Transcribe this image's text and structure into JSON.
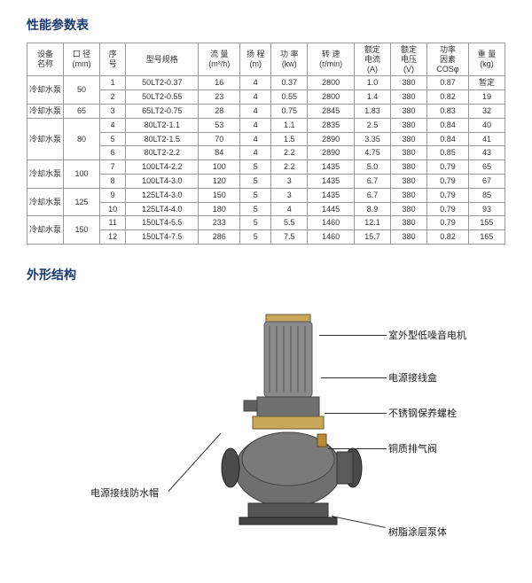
{
  "title1": "性能参数表",
  "title2": "外形结构",
  "headers": {
    "name": "设备\n名称",
    "dia": "口 径\n(mm)",
    "seq": "序\n号",
    "model": "型号规格",
    "flow": "流 量\n(m³/h)",
    "head": "扬 程\n(m)",
    "power": "功 率\n(kw)",
    "rpm": "转 速\n(r/min)",
    "current": "额定\n电流\n(A)",
    "voltage": "额定\n电压\n(V)",
    "pf": "功率\n因素\nCOSφ",
    "weight": "重 量\n(kg)"
  },
  "groups": [
    {
      "name": "冷却水泵",
      "dia": "50",
      "rows": [
        {
          "seq": "1",
          "model": "50LT2-0.37",
          "flow": "16",
          "head": "4",
          "power": "0.37",
          "rpm": "2800",
          "current": "1.0",
          "voltage": "380",
          "pf": "0.87",
          "weight": "暂定"
        },
        {
          "seq": "2",
          "model": "50LT2-0.55",
          "flow": "23",
          "head": "4",
          "power": "0.55",
          "rpm": "2800",
          "current": "1.4",
          "voltage": "380",
          "pf": "0.82",
          "weight": "19"
        }
      ]
    },
    {
      "name": "冷却水泵",
      "dia": "65",
      "rows": [
        {
          "seq": "3",
          "model": "65LT2-0.75",
          "flow": "28",
          "head": "4",
          "power": "0.75",
          "rpm": "2845",
          "current": "1.83",
          "voltage": "380",
          "pf": "0.83",
          "weight": "32"
        }
      ]
    },
    {
      "name": "冷却水泵",
      "dia": "80",
      "rows": [
        {
          "seq": "4",
          "model": "80LT2-1.1",
          "flow": "53",
          "head": "4",
          "power": "1.1",
          "rpm": "2835",
          "current": "2.5",
          "voltage": "380",
          "pf": "0.84",
          "weight": "40"
        },
        {
          "seq": "5",
          "model": "80LT2-1.5",
          "flow": "70",
          "head": "4",
          "power": "1.5",
          "rpm": "2890",
          "current": "3.35",
          "voltage": "380",
          "pf": "0.84",
          "weight": "41"
        },
        {
          "seq": "6",
          "model": "80LT2-2.2",
          "flow": "84",
          "head": "4",
          "power": "2.2",
          "rpm": "2890",
          "current": "4.75",
          "voltage": "380",
          "pf": "0.85",
          "weight": "43"
        }
      ]
    },
    {
      "name": "冷却水泵",
      "dia": "100",
      "rows": [
        {
          "seq": "7",
          "model": "100LT4-2.2",
          "flow": "100",
          "head": "5",
          "power": "2.2",
          "rpm": "1435",
          "current": "5.0",
          "voltage": "380",
          "pf": "0.79",
          "weight": "65"
        },
        {
          "seq": "8",
          "model": "100LT4-3.0",
          "flow": "120",
          "head": "5",
          "power": "3",
          "rpm": "1435",
          "current": "6.7",
          "voltage": "380",
          "pf": "0.79",
          "weight": "67"
        }
      ]
    },
    {
      "name": "冷却水泵",
      "dia": "125",
      "rows": [
        {
          "seq": "9",
          "model": "125LT4-3.0",
          "flow": "150",
          "head": "5",
          "power": "3",
          "rpm": "1435",
          "current": "6.7",
          "voltage": "380",
          "pf": "0.79",
          "weight": "85"
        },
        {
          "seq": "10",
          "model": "125LT4-4.0",
          "flow": "180",
          "head": "5",
          "power": "4",
          "rpm": "1445",
          "current": "8.9",
          "voltage": "380",
          "pf": "0.79",
          "weight": "93"
        }
      ]
    },
    {
      "name": "冷却水泵",
      "dia": "150",
      "rows": [
        {
          "seq": "11",
          "model": "150LT4-5.5",
          "flow": "233",
          "head": "5",
          "power": "5.5",
          "rpm": "1460",
          "current": "12.1",
          "voltage": "380",
          "pf": "0.79",
          "weight": "155"
        },
        {
          "seq": "12",
          "model": "150LT4-7.5",
          "flow": "286",
          "head": "5",
          "power": "7.5",
          "rpm": "1460",
          "current": "15.7",
          "voltage": "380",
          "pf": "0.82",
          "weight": "165"
        }
      ]
    }
  ],
  "diagram": {
    "labels": {
      "motor": "室外型低噪音电机",
      "junction": "电源接线盒",
      "bolt": "不锈钢保养螺栓",
      "valve": "铜质排气阀",
      "cap": "电源接线防水帽",
      "body": "树脂涂层泵体"
    }
  },
  "style": {
    "title_color": "#1a3a6e",
    "border_color": "#999999",
    "text_color": "#333333",
    "bg": "#ffffff"
  }
}
